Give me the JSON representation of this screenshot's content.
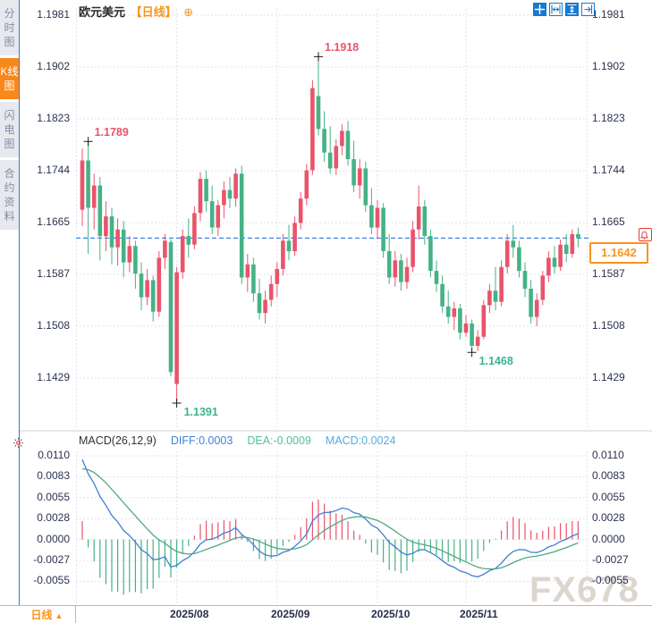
{
  "sidebar": {
    "tabs": [
      {
        "label": "分时图",
        "active": false
      },
      {
        "label": "K线图",
        "active": true
      },
      {
        "label": "闪电图",
        "active": false
      },
      {
        "label": "合约资料",
        "active": false
      }
    ]
  },
  "header": {
    "symbol": "欧元美元",
    "period_tag": "【日线】",
    "plus_icon": "⊕"
  },
  "toolbar": {
    "icons": [
      "crosshair-icon",
      "fit-width-icon",
      "fit-height-icon",
      "pan-right-icon"
    ]
  },
  "macd_panel": {
    "title": "MACD(26,12,9)",
    "diff_label": "DIFF:0.0003",
    "dea_label": "DEA:-0.0009",
    "macd_label": "MACD:0.0024"
  },
  "bottom_bar": {
    "period": "日线",
    "arrow": "▲"
  },
  "watermark": "FX678",
  "chart_data": {
    "type": "candlestick_with_macd",
    "symbol": "欧元美元",
    "interval": "日线",
    "price_axis_labels": [
      "1.1981",
      "1.1902",
      "1.1823",
      "1.1744",
      "1.1665",
      "1.1587",
      "1.1508",
      "1.1429"
    ],
    "macd_axis_labels": [
      "0.0110",
      "0.0083",
      "0.0055",
      "0.0028",
      "0.0000",
      "-0.0027",
      "-0.0055"
    ],
    "x_labels": [
      "2025/08",
      "2025/09",
      "2025/10",
      "2025/11"
    ],
    "month_start_indices": [
      16,
      33,
      50,
      65
    ],
    "current_price": 1.1642,
    "current_price_label": "1.1642",
    "macd": {
      "params": [
        26,
        12,
        9
      ],
      "diff": 0.0003,
      "dea": -0.0009,
      "macd": 0.0024
    },
    "macd_seed": {
      "ema12_offset": 0.0075,
      "ema26_offset": -0.0045,
      "dea": 0.009
    },
    "markers": [
      {
        "index": 1,
        "kind": "high",
        "label": "1.1789"
      },
      {
        "index": 40,
        "kind": "high",
        "label": "1.1918"
      },
      {
        "index": 16,
        "kind": "low",
        "label": "1.1391"
      },
      {
        "index": 66,
        "kind": "low",
        "label": "1.1468"
      }
    ],
    "colors": {
      "up": "#e9546b",
      "down": "#45b286",
      "diff_line": "#3f7fd6",
      "dea_line": "#4fa882",
      "dashed_line": "#2377e8",
      "accent_orange": "#f7941d"
    },
    "candles": [
      [
        1.1685,
        1.1778,
        1.166,
        1.176
      ],
      [
        1.176,
        1.1789,
        1.1618,
        1.1688
      ],
      [
        1.1688,
        1.174,
        1.1655,
        1.1722
      ],
      [
        1.1722,
        1.1735,
        1.1608,
        1.1645
      ],
      [
        1.1645,
        1.1698,
        1.1622,
        1.1675
      ],
      [
        1.1675,
        1.1688,
        1.1602,
        1.1628
      ],
      [
        1.1628,
        1.1672,
        1.16,
        1.1655
      ],
      [
        1.1655,
        1.1668,
        1.1582,
        1.1605
      ],
      [
        1.1605,
        1.1645,
        1.159,
        1.163
      ],
      [
        1.163,
        1.1638,
        1.1565,
        1.1588
      ],
      [
        1.1588,
        1.1605,
        1.1532,
        1.1552
      ],
      [
        1.1552,
        1.1595,
        1.154,
        1.1578
      ],
      [
        1.1578,
        1.1585,
        1.1515,
        1.153
      ],
      [
        1.153,
        1.1622,
        1.1522,
        1.1612
      ],
      [
        1.1612,
        1.1648,
        1.1595,
        1.1638
      ],
      [
        1.1636,
        1.164,
        1.1432,
        1.1438
      ],
      [
        1.142,
        1.1598,
        1.1391,
        1.159
      ],
      [
        1.159,
        1.1655,
        1.158,
        1.1645
      ],
      [
        1.1645,
        1.1672,
        1.1612,
        1.1632
      ],
      [
        1.1632,
        1.169,
        1.1625,
        1.168
      ],
      [
        1.168,
        1.1742,
        1.1668,
        1.1732
      ],
      [
        1.1732,
        1.1745,
        1.1682,
        1.1698
      ],
      [
        1.1698,
        1.1722,
        1.1648,
        1.1658
      ],
      [
        1.1658,
        1.17,
        1.1645,
        1.1692
      ],
      [
        1.1692,
        1.1728,
        1.1672,
        1.1715
      ],
      [
        1.1715,
        1.1735,
        1.1688,
        1.1702
      ],
      [
        1.1702,
        1.1748,
        1.169,
        1.174
      ],
      [
        1.174,
        1.1752,
        1.1572,
        1.1582
      ],
      [
        1.1582,
        1.1618,
        1.156,
        1.1602
      ],
      [
        1.1602,
        1.1612,
        1.1545,
        1.1558
      ],
      [
        1.1558,
        1.158,
        1.1518,
        1.1528
      ],
      [
        1.1528,
        1.1562,
        1.1512,
        1.1548
      ],
      [
        1.1548,
        1.1585,
        1.1538,
        1.1572
      ],
      [
        1.1572,
        1.1605,
        1.1552,
        1.1595
      ],
      [
        1.1595,
        1.1648,
        1.1585,
        1.1638
      ],
      [
        1.1638,
        1.1662,
        1.1608,
        1.1622
      ],
      [
        1.1622,
        1.1675,
        1.1615,
        1.1665
      ],
      [
        1.1665,
        1.1712,
        1.1655,
        1.1702
      ],
      [
        1.1702,
        1.1755,
        1.1692,
        1.1745
      ],
      [
        1.1745,
        1.1882,
        1.1738,
        1.187
      ],
      [
        1.1858,
        1.1918,
        1.1798,
        1.1808
      ],
      [
        1.1808,
        1.1835,
        1.1758,
        1.1772
      ],
      [
        1.1772,
        1.1812,
        1.174,
        1.1748
      ],
      [
        1.1748,
        1.1792,
        1.1738,
        1.1782
      ],
      [
        1.1782,
        1.1815,
        1.1768,
        1.1805
      ],
      [
        1.1805,
        1.182,
        1.1752,
        1.1762
      ],
      [
        1.1762,
        1.179,
        1.1712,
        1.1722
      ],
      [
        1.1722,
        1.1762,
        1.1702,
        1.1748
      ],
      [
        1.1748,
        1.1758,
        1.1682,
        1.1692
      ],
      [
        1.1692,
        1.1718,
        1.1648,
        1.1658
      ],
      [
        1.1658,
        1.17,
        1.1642,
        1.1688
      ],
      [
        1.1688,
        1.1695,
        1.1612,
        1.1622
      ],
      [
        1.1622,
        1.1648,
        1.1572,
        1.1582
      ],
      [
        1.1582,
        1.1622,
        1.1568,
        1.1608
      ],
      [
        1.1608,
        1.1618,
        1.1562,
        1.1575
      ],
      [
        1.1575,
        1.1612,
        1.1565,
        1.1598
      ],
      [
        1.1598,
        1.1668,
        1.159,
        1.1655
      ],
      [
        1.1655,
        1.1722,
        1.164,
        1.169
      ],
      [
        1.169,
        1.17,
        1.1632,
        1.1645
      ],
      [
        1.1645,
        1.1655,
        1.1582,
        1.1592
      ],
      [
        1.1592,
        1.1608,
        1.156,
        1.1572
      ],
      [
        1.1572,
        1.1585,
        1.1528,
        1.1538
      ],
      [
        1.1538,
        1.1562,
        1.1512,
        1.1522
      ],
      [
        1.1522,
        1.1545,
        1.1502,
        1.1535
      ],
      [
        1.1535,
        1.1542,
        1.1488,
        1.1498
      ],
      [
        1.1498,
        1.1525,
        1.1492,
        1.1512
      ],
      [
        1.1512,
        1.1518,
        1.1468,
        1.1478
      ],
      [
        1.1478,
        1.1502,
        1.147,
        1.1492
      ],
      [
        1.1492,
        1.1548,
        1.1488,
        1.154
      ],
      [
        1.154,
        1.1572,
        1.1528,
        1.1562
      ],
      [
        1.1562,
        1.1598,
        1.1532,
        1.1545
      ],
      [
        1.1545,
        1.1608,
        1.1538,
        1.1598
      ],
      [
        1.1598,
        1.1648,
        1.1588,
        1.1638
      ],
      [
        1.1638,
        1.1662,
        1.1612,
        1.1628
      ],
      [
        1.1628,
        1.1638,
        1.1582,
        1.1592
      ],
      [
        1.1592,
        1.1605,
        1.1552,
        1.1565
      ],
      [
        1.1565,
        1.1578,
        1.1512,
        1.1522
      ],
      [
        1.1522,
        1.1558,
        1.1508,
        1.1548
      ],
      [
        1.1548,
        1.1592,
        1.154,
        1.1585
      ],
      [
        1.1585,
        1.1622,
        1.1575,
        1.1612
      ],
      [
        1.1612,
        1.163,
        1.1588,
        1.1598
      ],
      [
        1.1598,
        1.164,
        1.1592,
        1.1632
      ],
      [
        1.1632,
        1.1648,
        1.1605,
        1.1618
      ],
      [
        1.1618,
        1.1655,
        1.1612,
        1.1648
      ],
      [
        1.1648,
        1.1658,
        1.1628,
        1.1642
      ]
    ]
  }
}
